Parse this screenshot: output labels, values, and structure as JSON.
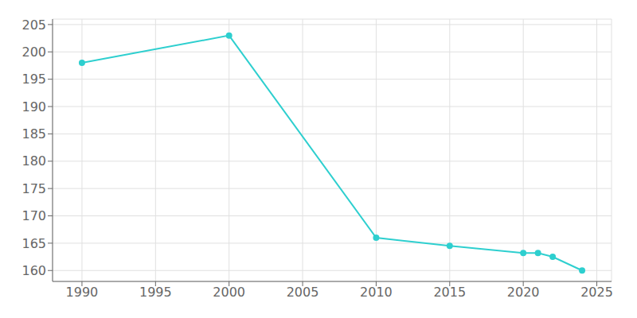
{
  "chart_data": {
    "type": "line",
    "x": [
      1990,
      2000,
      2010,
      2015,
      2020,
      2021,
      2022,
      2024
    ],
    "values": [
      198,
      203,
      166,
      164.5,
      163.2,
      163.2,
      162.5,
      160
    ],
    "color": "#2ecfcf",
    "marker": "circle",
    "xlim": [
      1988,
      2026
    ],
    "ylim": [
      158,
      206
    ],
    "xticks": [
      1990,
      1995,
      2000,
      2005,
      2010,
      2015,
      2020,
      2025
    ],
    "yticks": [
      160,
      165,
      170,
      175,
      180,
      185,
      190,
      195,
      200,
      205
    ],
    "grid": true
  }
}
